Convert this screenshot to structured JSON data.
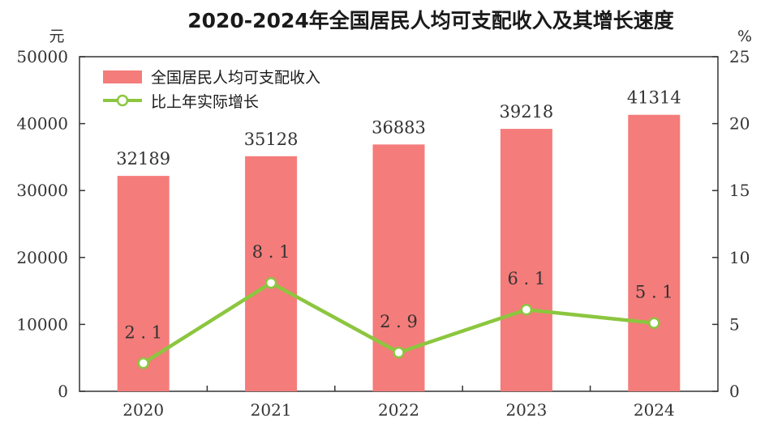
{
  "chart_data": {
    "type": "bar",
    "title": "2020-2024年全国居民人均可支配收入及其增长速度",
    "categories": [
      "2020",
      "2021",
      "2022",
      "2023",
      "2024"
    ],
    "series": [
      {
        "name": "全国居民人均可支配收入",
        "type": "bar",
        "axis": "left",
        "values": [
          32189,
          35128,
          36883,
          39218,
          41314
        ],
        "labels": [
          "32189",
          "35128",
          "36883",
          "39218",
          "41314"
        ]
      },
      {
        "name": "比上年实际增长",
        "type": "line",
        "axis": "right",
        "values": [
          2.1,
          8.1,
          2.9,
          6.1,
          5.1
        ],
        "labels": [
          "2.1",
          "8.1",
          "2.9",
          "6.1",
          "5.1"
        ]
      }
    ],
    "left_axis": {
      "unit": "元",
      "ylim": [
        0,
        50000
      ],
      "ticks": [
        0,
        10000,
        20000,
        30000,
        40000,
        50000
      ],
      "tick_labels": [
        "0",
        "10000",
        "20000",
        "30000",
        "40000",
        "50000"
      ]
    },
    "right_axis": {
      "unit": "%",
      "ylim": [
        0,
        25
      ],
      "ticks": [
        0,
        5,
        10,
        15,
        20,
        25
      ],
      "tick_labels": [
        "0",
        "5",
        "10",
        "15",
        "20",
        "25"
      ]
    },
    "legend_position": "top-left",
    "grid": false,
    "colors": {
      "bar": "#f47c7a",
      "line": "#8cc63f",
      "marker_fill": "#ffffff",
      "axis": "#333333",
      "legend_bg": "#ffffff"
    }
  }
}
